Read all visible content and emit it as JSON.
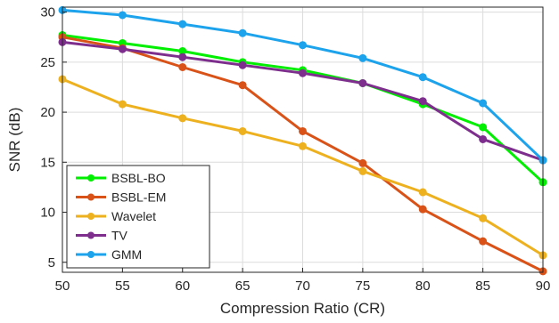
{
  "chart_data": {
    "type": "line",
    "xlabel": "Compression Ratio (CR)",
    "ylabel": "SNR (dB)",
    "x": [
      50,
      55,
      60,
      65,
      70,
      75,
      80,
      85,
      90
    ],
    "xlim": [
      50,
      90
    ],
    "ylim": [
      4,
      30.5
    ],
    "xticks": [
      50,
      55,
      60,
      65,
      70,
      75,
      80,
      85,
      90
    ],
    "yticks": [
      5,
      10,
      15,
      20,
      25,
      30
    ],
    "grid": true,
    "legend_position": "bottom-left",
    "series": [
      {
        "name": "BSBL-BO",
        "color": "#00ee00",
        "values": [
          27.7,
          26.9,
          26.1,
          25.0,
          24.2,
          22.9,
          20.8,
          18.5,
          13.0
        ]
      },
      {
        "name": "BSBL-EM",
        "color": "#d95319",
        "values": [
          27.5,
          26.4,
          24.5,
          22.7,
          18.1,
          14.9,
          10.3,
          7.1,
          4.1
        ]
      },
      {
        "name": "Wavelet",
        "color": "#edb120",
        "values": [
          23.3,
          20.8,
          19.4,
          18.1,
          16.6,
          14.1,
          12.0,
          9.4,
          5.7
        ]
      },
      {
        "name": "TV",
        "color": "#7e2f8e",
        "values": [
          27.0,
          26.3,
          25.5,
          24.7,
          23.9,
          22.9,
          21.1,
          17.3,
          15.2
        ]
      },
      {
        "name": "GMM",
        "color": "#1ca3ec",
        "values": [
          30.2,
          29.7,
          28.8,
          27.9,
          26.7,
          25.4,
          23.5,
          20.9,
          15.2
        ]
      }
    ]
  }
}
